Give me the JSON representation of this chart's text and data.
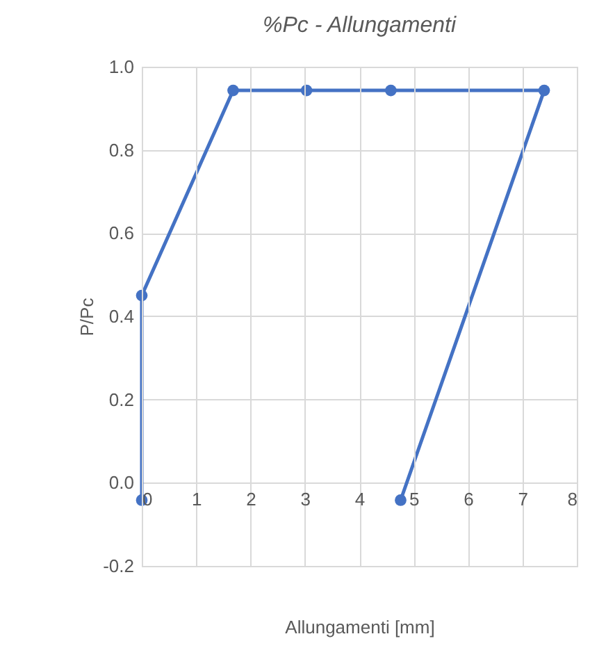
{
  "chart_data": {
    "type": "line",
    "title": "%Pc - Allungamenti",
    "xlabel": "Allungamenti [mm]",
    "ylabel": "P/Pc",
    "x": [
      0,
      0,
      1.68,
      3.03,
      4.58,
      7.4,
      4.76
    ],
    "series": [
      {
        "color": "#4472c4",
        "values": [
          -0.042,
          0.45,
          0.943,
          0.943,
          0.943,
          0.943,
          -0.042
        ]
      }
    ],
    "xlim": [
      0,
      8
    ],
    "xticks": [
      0,
      1,
      2,
      3,
      4,
      5,
      6,
      7,
      8
    ],
    "ylim": [
      -0.2,
      1
    ],
    "yticks": [
      {
        "value": -0.2,
        "label": "-0.2"
      },
      {
        "value": 0,
        "label": "0.0"
      },
      {
        "value": 0.2,
        "label": "0.2"
      },
      {
        "value": 0.4,
        "label": "0.4"
      },
      {
        "value": 0.6,
        "label": "0.6"
      },
      {
        "value": 0.8,
        "label": "0.8"
      },
      {
        "value": 1,
        "label": "1.0"
      }
    ],
    "grid": true,
    "marker": "circle"
  }
}
